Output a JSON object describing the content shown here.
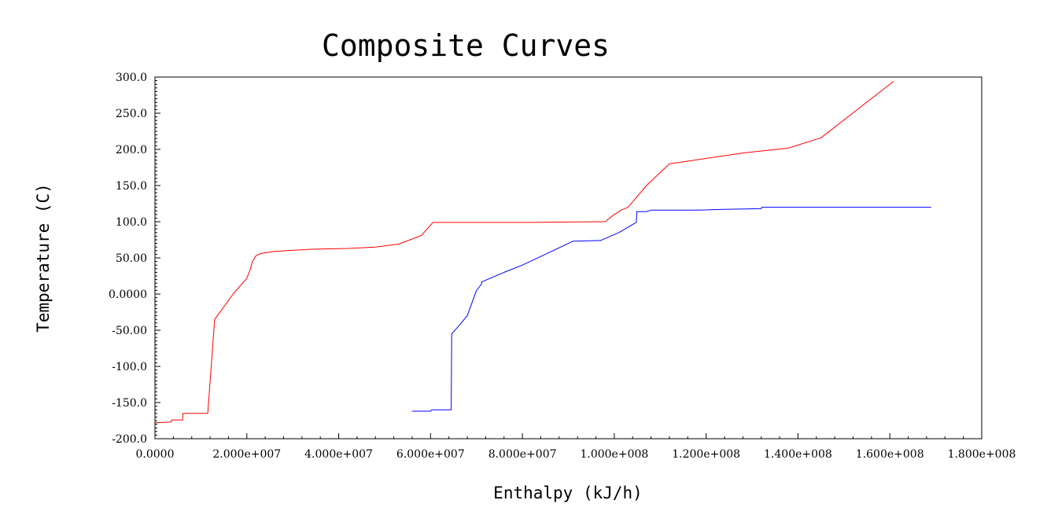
{
  "chart_data": {
    "type": "line",
    "title": "Composite Curves",
    "xlabel": "Enthalpy (kJ/h)",
    "ylabel": "Temperature (C)",
    "xlim": [
      0,
      180000000
    ],
    "ylim": [
      -200,
      300
    ],
    "x_tick_labels": [
      "0.0000",
      "2.000e+007",
      "4.000e+007",
      "6.000e+007",
      "8.000e+007",
      "1.000e+008",
      "1.200e+008",
      "1.400e+008",
      "1.600e+008",
      "1.800e+008"
    ],
    "y_tick_labels": [
      "300.0",
      "250.0",
      "200.0",
      "150.0",
      "100.0",
      "50.00",
      "0.0000",
      "-50.00",
      "-100.0",
      "-150.0",
      "-200.0"
    ],
    "grid": false,
    "series": [
      {
        "color": "#ff0000",
        "points": [
          [
            0,
            -178
          ],
          [
            3500000,
            -177
          ],
          [
            3600000,
            -174
          ],
          [
            6000000,
            -174
          ],
          [
            6100000,
            -165
          ],
          [
            11500000,
            -165
          ],
          [
            13000000,
            -35
          ],
          [
            17000000,
            0
          ],
          [
            20000000,
            22
          ],
          [
            20800000,
            35
          ],
          [
            21200000,
            45
          ],
          [
            22000000,
            53
          ],
          [
            23000000,
            56
          ],
          [
            26000000,
            59
          ],
          [
            34000000,
            62
          ],
          [
            42000000,
            63
          ],
          [
            48000000,
            65
          ],
          [
            53000000,
            69
          ],
          [
            58000000,
            81
          ],
          [
            60500000,
            99
          ],
          [
            70000000,
            99
          ],
          [
            81000000,
            99
          ],
          [
            98000000,
            100
          ],
          [
            100000000,
            110
          ],
          [
            101500000,
            116
          ],
          [
            103000000,
            120
          ],
          [
            107000000,
            150
          ],
          [
            112000000,
            180
          ],
          [
            128000000,
            195
          ],
          [
            138000000,
            202
          ],
          [
            145000000,
            216
          ],
          [
            160800000,
            294
          ]
        ]
      },
      {
        "color": "#0000ff",
        "points": [
          [
            56000000,
            -162
          ],
          [
            60000000,
            -162
          ],
          [
            60300000,
            -160
          ],
          [
            64500000,
            -160
          ],
          [
            64600000,
            -55
          ],
          [
            66000000,
            -45
          ],
          [
            68000000,
            -30
          ],
          [
            70000000,
            5
          ],
          [
            71000000,
            13
          ],
          [
            71200000,
            17
          ],
          [
            76000000,
            30
          ],
          [
            80000000,
            40
          ],
          [
            85000000,
            55
          ],
          [
            91000000,
            73
          ],
          [
            97000000,
            74
          ],
          [
            101000000,
            85
          ],
          [
            104500000,
            98
          ],
          [
            104800000,
            99
          ],
          [
            104900000,
            114
          ],
          [
            107000000,
            114
          ],
          [
            108000000,
            116
          ],
          [
            118000000,
            116
          ],
          [
            123000000,
            117
          ],
          [
            132000000,
            118
          ],
          [
            132100000,
            120
          ],
          [
            169000000,
            120
          ]
        ]
      }
    ]
  }
}
